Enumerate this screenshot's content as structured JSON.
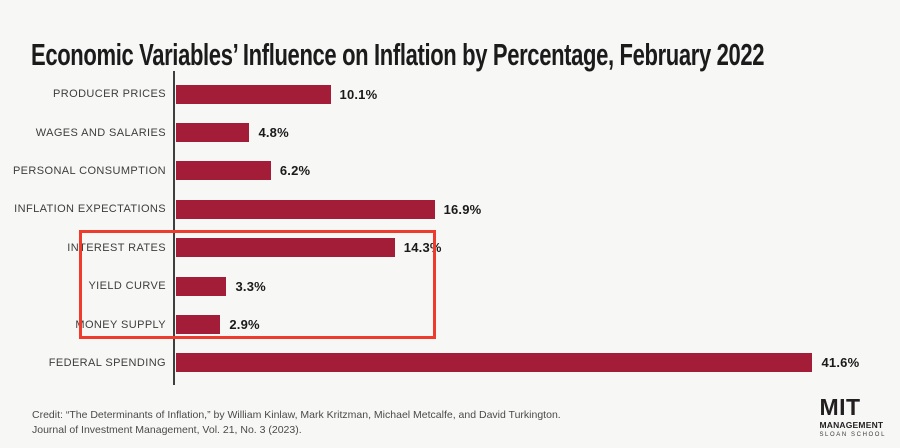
{
  "title": "Economic Variables’ Influence on Inflation by Percentage, February 2022",
  "chart_data": {
    "type": "bar",
    "orientation": "horizontal",
    "title": "Economic Variables’ Influence on Inflation by Percentage, February 2022",
    "categories": [
      "PRODUCER PRICES",
      "WAGES AND SALARIES",
      "PERSONAL CONSUMPTION",
      "INFLATION EXPECTATIONS",
      "INTEREST RATES",
      "YIELD CURVE",
      "MONEY SUPPLY",
      "FEDERAL SPENDING"
    ],
    "values": [
      10.1,
      4.8,
      6.2,
      16.9,
      14.3,
      3.3,
      2.9,
      41.6
    ],
    "value_labels": [
      "10.1%",
      "4.8%",
      "6.2%",
      "16.9%",
      "14.3%",
      "3.3%",
      "2.9%",
      "41.6%"
    ],
    "highlight_indices": [
      4,
      5,
      6
    ],
    "highlighted_categories": [
      "INTEREST RATES",
      "YIELD CURVE",
      "MONEY SUPPLY"
    ],
    "xlim": [
      0,
      43.5
    ],
    "xlabel": "",
    "ylabel": "",
    "grid": false,
    "legend": false,
    "bar_color": "#a31c38",
    "highlight_box_color": "#ee3b2e",
    "axis_color": "#3f3f3f"
  },
  "footer": {
    "credit_line1": "Credit: “The Determinants of Inflation,” by William Kinlaw, Mark Kritzman, Michael Metcalfe, and David Turkington.",
    "credit_line2": "Journal of Investment Management, Vol. 21, No. 3 (2023)."
  },
  "logo": {
    "line1": "MIT",
    "line2": "MANAGEMENT",
    "line3": "SLOAN SCHOOL"
  }
}
